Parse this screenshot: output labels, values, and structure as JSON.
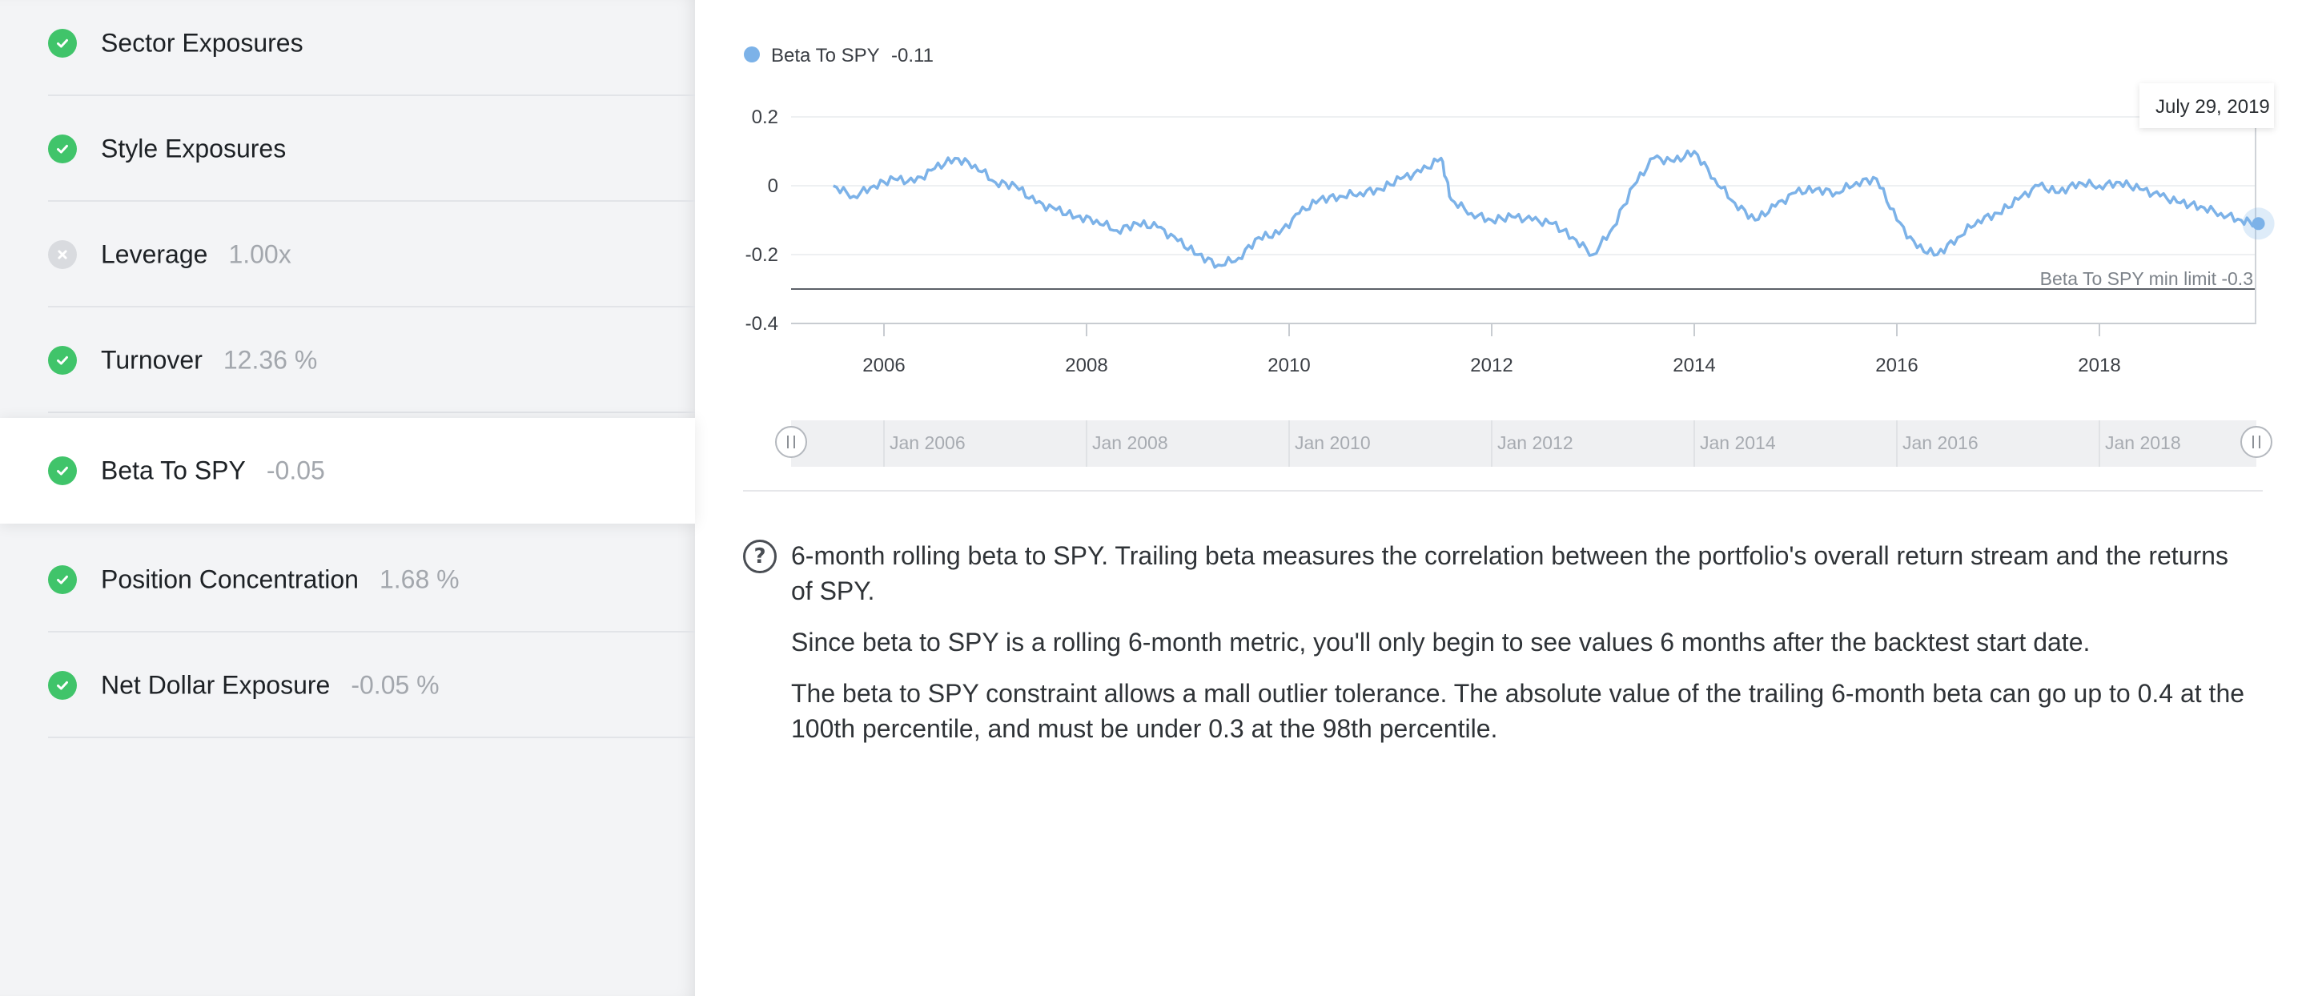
{
  "sidebar": {
    "items": [
      {
        "label": "Sector Exposures",
        "value": "",
        "status": "pass",
        "active": false
      },
      {
        "label": "Style Exposures",
        "value": "",
        "status": "pass",
        "active": false
      },
      {
        "label": "Leverage",
        "value": "1.00x",
        "status": "fail",
        "active": false
      },
      {
        "label": "Turnover",
        "value": "12.36 %",
        "status": "pass",
        "active": false
      },
      {
        "label": "Beta To SPY",
        "value": "-0.05",
        "status": "pass",
        "active": true
      },
      {
        "label": "Position Concentration",
        "value": "1.68 %",
        "status": "pass",
        "active": false
      },
      {
        "label": "Net Dollar Exposure",
        "value": "-0.05 %",
        "status": "pass",
        "active": false
      }
    ]
  },
  "chart_data": {
    "type": "line",
    "legend": {
      "name": "Beta To SPY",
      "value": "-0.11"
    },
    "colors": {
      "line": "#7cb2e8",
      "plotline": "#5c6168"
    },
    "tooltip": "July 29, 2019",
    "ylim": [
      -0.4,
      0.2
    ],
    "y_ticks": [
      "0.2",
      "0",
      "-0.2",
      "-0.4"
    ],
    "x_ticks": [
      "2006",
      "2008",
      "2010",
      "2012",
      "2014",
      "2016",
      "2018"
    ],
    "navigator_labels": [
      "Jan 2006",
      "Jan 2008",
      "Jan 2010",
      "Jan 2012",
      "Jan 2014",
      "Jan 2016",
      "Jan 2018"
    ],
    "plotline": {
      "value": -0.3,
      "label": "Beta To SPY min limit -0.3"
    },
    "series": [
      {
        "x": [
          2005.5,
          2005.7,
          2005.9,
          2006.1,
          2006.3,
          2006.5,
          2006.7,
          2006.9,
          2007.1,
          2007.3,
          2007.5,
          2007.7,
          2007.9,
          2008.1,
          2008.3,
          2008.5,
          2008.7,
          2008.9,
          2009.1,
          2009.3,
          2009.5,
          2009.7,
          2009.9,
          2010.1,
          2010.3,
          2010.5,
          2010.7,
          2010.9,
          2011.1,
          2011.3,
          2011.5,
          2011.6,
          2011.8,
          2012.0,
          2012.2,
          2012.4,
          2012.6,
          2012.8,
          2013.0,
          2013.2,
          2013.4,
          2013.6,
          2013.8,
          2014.0,
          2014.2,
          2014.4,
          2014.6,
          2014.8,
          2015.0,
          2015.2,
          2015.4,
          2015.6,
          2015.8,
          2016.0,
          2016.2,
          2016.4,
          2016.6,
          2016.8,
          2017.0,
          2017.2,
          2017.4,
          2017.6,
          2017.8,
          2018.0,
          2018.2,
          2018.4,
          2018.6,
          2018.8,
          2019.0,
          2019.2,
          2019.4,
          2019.57
        ],
        "values": [
          0.0,
          -0.03,
          0.0,
          0.02,
          0.01,
          0.05,
          0.08,
          0.06,
          0.01,
          0.0,
          -0.05,
          -0.07,
          -0.09,
          -0.1,
          -0.13,
          -0.11,
          -0.12,
          -0.16,
          -0.2,
          -0.23,
          -0.21,
          -0.15,
          -0.14,
          -0.08,
          -0.04,
          -0.03,
          -0.02,
          -0.01,
          0.02,
          0.04,
          0.08,
          -0.04,
          -0.08,
          -0.1,
          -0.09,
          -0.1,
          -0.11,
          -0.15,
          -0.2,
          -0.12,
          0.0,
          0.08,
          0.07,
          0.1,
          0.02,
          -0.05,
          -0.1,
          -0.06,
          -0.02,
          -0.01,
          -0.02,
          0.01,
          0.02,
          -0.1,
          -0.18,
          -0.2,
          -0.15,
          -0.1,
          -0.08,
          -0.04,
          0.0,
          -0.02,
          0.01,
          0.0,
          0.01,
          -0.01,
          -0.03,
          -0.05,
          -0.06,
          -0.08,
          -0.1,
          -0.11
        ]
      }
    ]
  },
  "help_text": [
    "6-month rolling beta to SPY. Trailing beta measures the correlation between the portfolio's overall return stream and the returns of SPY.",
    "Since beta to SPY is a rolling 6-month metric, you'll only begin to see values 6 months after the backtest start date.",
    "The beta to SPY constraint allows a mall outlier tolerance. The absolute value of the trailing 6-month beta can go up to 0.4 at the 100th percentile, and must be under 0.3 at the 98th percentile."
  ]
}
